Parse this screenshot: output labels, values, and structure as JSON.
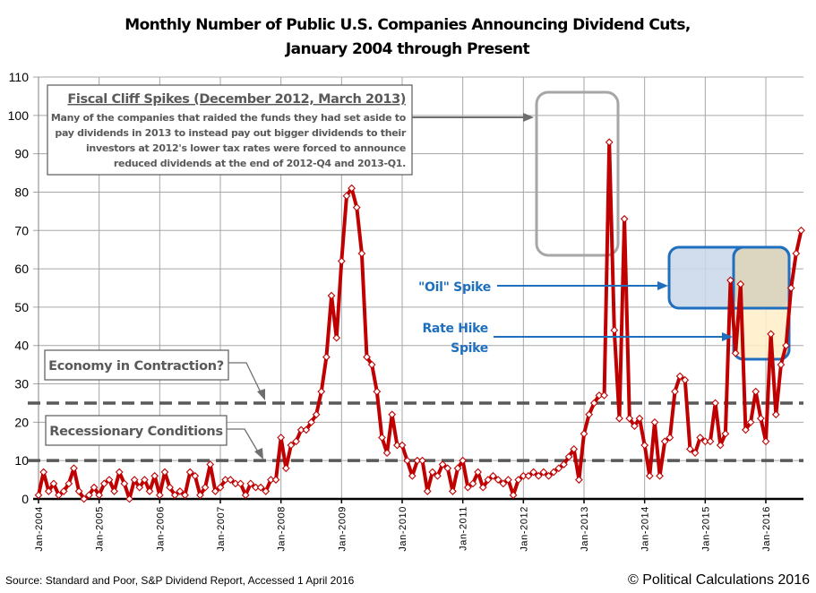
{
  "chart_data": {
    "type": "line",
    "title": "Monthly Number of Public U.S. Companies Announcing Dividend Cuts,",
    "subtitle": "January 2004 through Present",
    "xlabel": "",
    "ylabel": "",
    "ylim": [
      0,
      110
    ],
    "yticks": [
      "0",
      "10",
      "20",
      "30",
      "40",
      "50",
      "60",
      "70",
      "80",
      "90",
      "100",
      "110"
    ],
    "xticks": [
      "Jan-2004",
      "Jan-2005",
      "Jan-2006",
      "Jan-2007",
      "Jan-2008",
      "Jan-2009",
      "Jan-2010",
      "Jan-2011",
      "Jan-2012",
      "Jan-2013",
      "Jan-2014",
      "Jan-2015",
      "Jan-2016"
    ],
    "grid": true,
    "start_month": "Jan-2004",
    "series": [
      {
        "name": "Dividend Cuts",
        "color": "#C00000",
        "values": [
          1,
          7,
          2,
          4,
          1,
          2,
          4,
          8,
          2,
          0,
          1,
          3,
          1,
          4,
          5,
          2,
          7,
          4,
          0,
          5,
          3,
          5,
          2,
          6,
          1,
          7,
          3,
          1,
          2,
          1,
          7,
          6,
          1,
          3,
          9,
          2,
          3,
          5,
          5,
          4,
          4,
          1,
          4,
          3,
          3,
          2,
          5,
          5,
          16,
          8,
          14,
          15,
          18,
          18,
          20,
          22,
          28,
          37,
          53,
          42,
          62,
          79,
          81,
          76,
          64,
          37,
          35,
          28,
          16,
          12,
          22,
          14,
          14,
          10,
          6,
          10,
          10,
          2,
          7,
          6,
          9,
          8,
          2,
          8,
          10,
          3,
          4,
          7,
          3,
          5,
          6,
          5,
          4,
          5,
          1,
          5,
          6,
          6,
          7,
          6,
          7,
          6,
          7,
          8,
          9,
          11,
          13,
          5,
          17,
          22,
          25,
          27,
          27,
          93,
          44,
          21,
          73,
          21,
          19,
          21,
          14,
          6,
          20,
          6,
          15,
          16,
          28,
          32,
          31,
          13,
          12,
          16,
          15,
          15,
          25,
          14,
          17,
          57,
          38,
          56,
          18,
          20,
          28,
          21,
          15,
          43,
          22,
          35,
          40,
          55,
          64,
          70
        ]
      }
    ],
    "reference_lines": [
      {
        "name": "Economy in Contraction?",
        "value": 25,
        "style": "dashed",
        "color": "#595959"
      },
      {
        "name": "Recessionary Conditions",
        "value": 10,
        "style": "dashed",
        "color": "#595959"
      }
    ],
    "annotations": {
      "fiscal_cliff": {
        "heading": "Fiscal Cliff Spikes (December 2012, March 2013)",
        "lines": [
          "Many of the companies that raided the funds they had set aside to",
          "pay dividends in 2013 to instead pay out bigger dividends to their",
          "investors at 2012's lower tax rates were forced to announce",
          "reduced dividends at the end of 2012-Q4 and 2013-Q1."
        ]
      },
      "economy_contraction": "Economy in Contraction?",
      "recessionary_conditions": "Recessionary Conditions",
      "oil_spike": "\"Oil\" Spike",
      "rate_hike_spike_line1": "Rate Hike",
      "rate_hike_spike_line2": "Spike"
    },
    "source": "Source:  Standard and Poor, S&P Dividend  Report, Accessed 1 April 2016",
    "credit": "© Political Calculations 2016"
  },
  "colors": {
    "line": "#C00000",
    "marker_fill": "#FFFFFF",
    "grid": "#A6A6A6",
    "dash": "#595959",
    "annotation_blue": "#1F6FBF",
    "oil_box_fill": "#C9D6EA",
    "rate_box_fill": "#FFEFC8",
    "fiscal_box_stroke": "#A6A6A6"
  }
}
